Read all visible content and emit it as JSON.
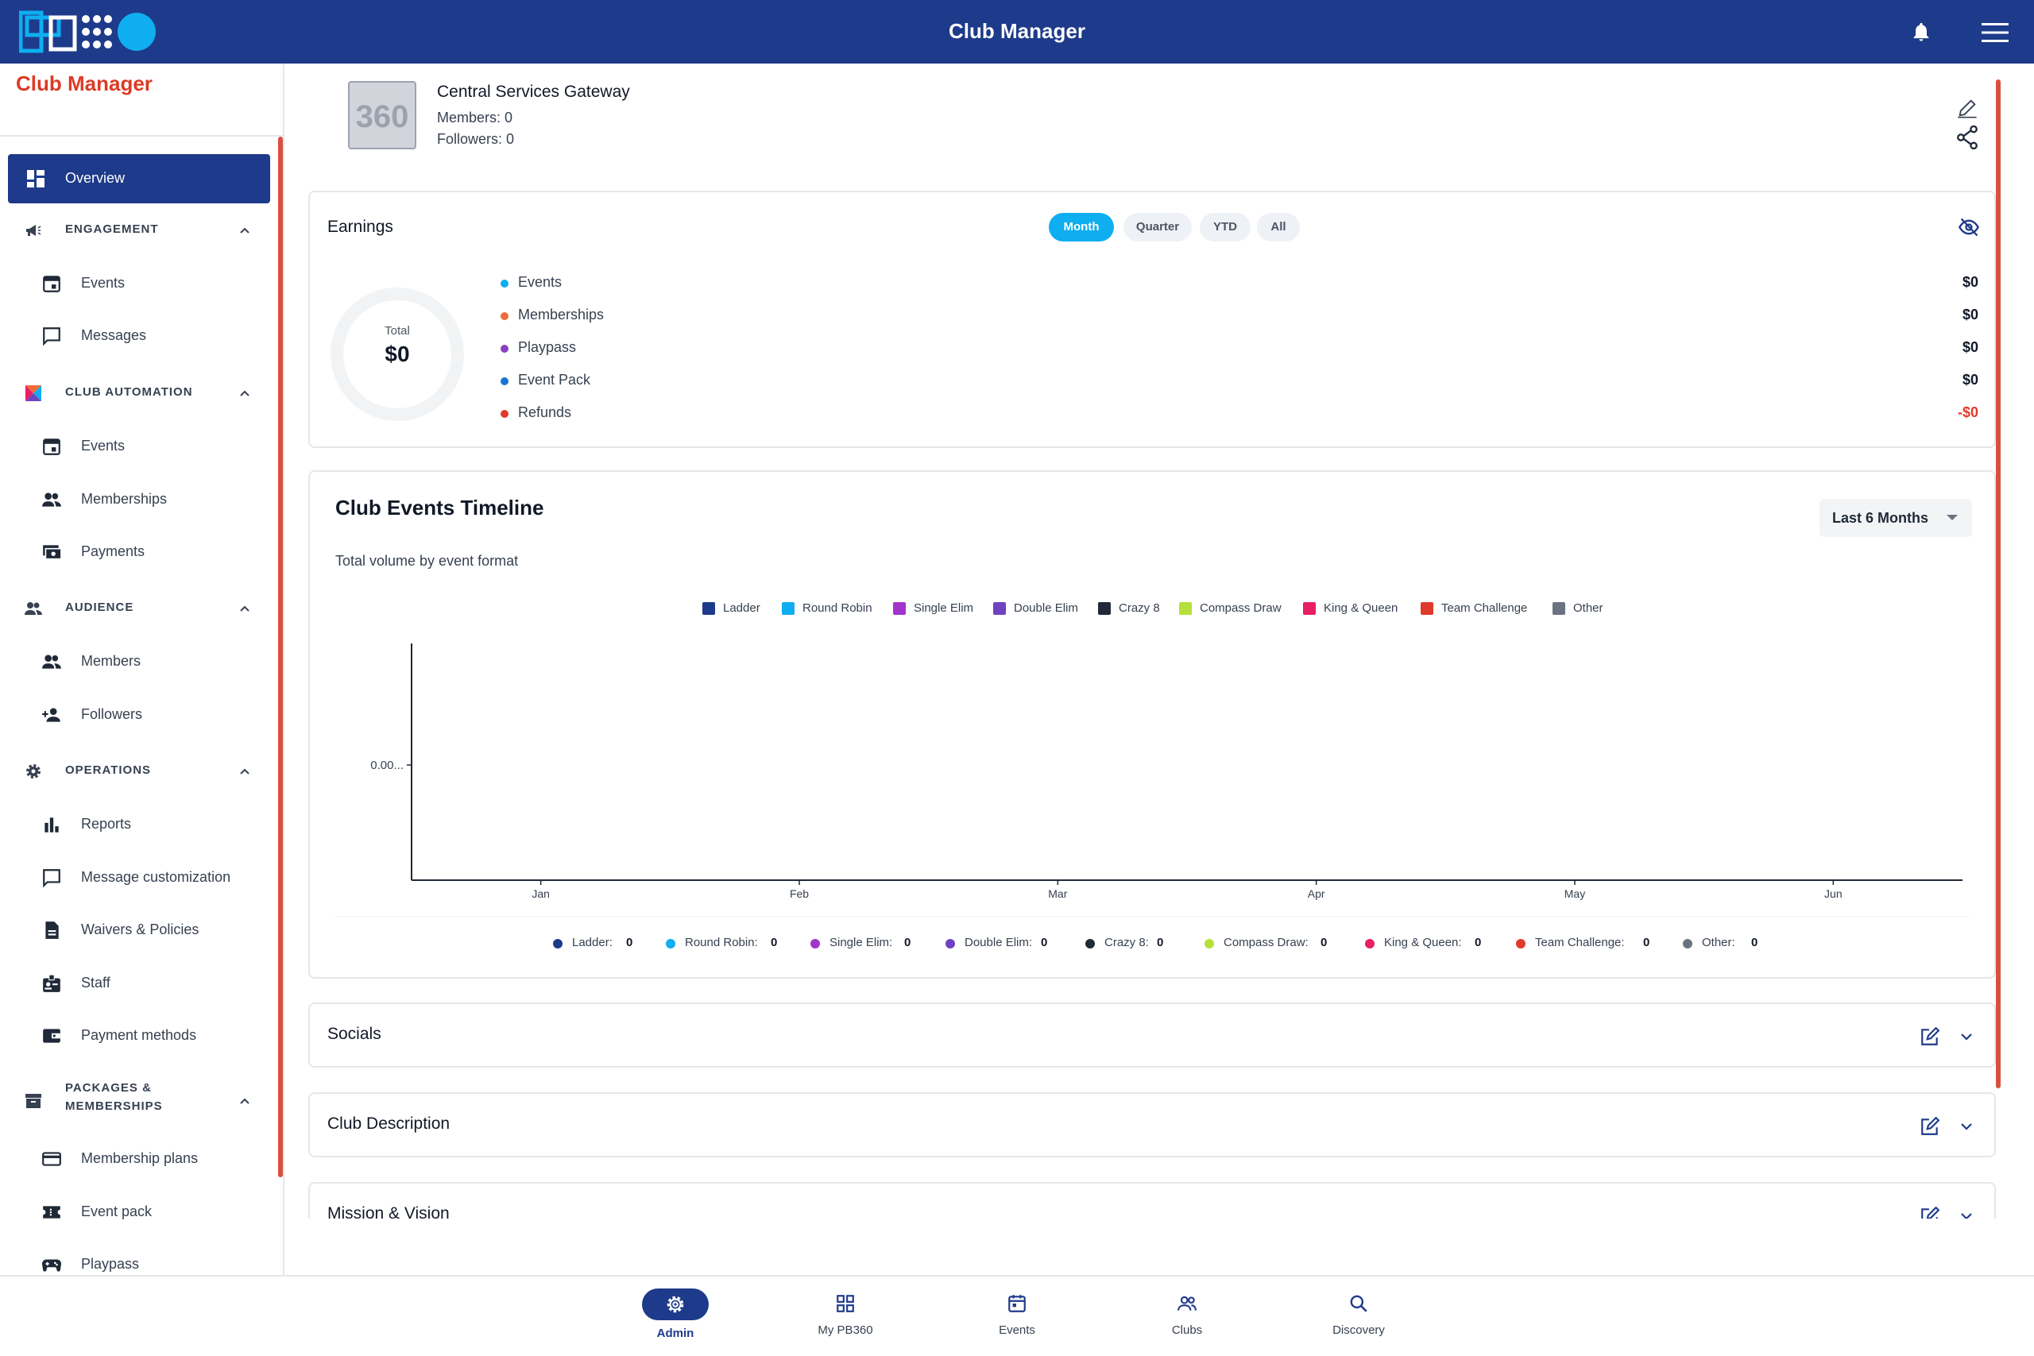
{
  "app": {
    "title": "Club Manager"
  },
  "sidebar": {
    "title": "Club Manager",
    "overview": "Overview",
    "sections": [
      {
        "label": "ENGAGEMENT",
        "items": [
          "Events",
          "Messages"
        ]
      },
      {
        "label": "CLUB AUTOMATION",
        "items": [
          "Events",
          "Memberships",
          "Payments"
        ]
      },
      {
        "label": "AUDIENCE",
        "items": [
          "Members",
          "Followers"
        ]
      },
      {
        "label": "OPERATIONS",
        "items": [
          "Reports",
          "Message customization",
          "Waivers & Policies",
          "Staff",
          "Payment methods"
        ]
      },
      {
        "label": "PACKAGES &",
        "label2": "MEMBERSHIPS",
        "items": [
          "Membership plans",
          "Event pack",
          "Playpass"
        ]
      }
    ]
  },
  "club": {
    "logo_text": "360",
    "name": "Central Services Gateway",
    "members": "Members:  0",
    "followers": "Followers:  0"
  },
  "earnings": {
    "title": "Earnings",
    "periods": [
      "Month",
      "Quarter",
      "YTD",
      "All"
    ],
    "selected_period": "Month",
    "total_label": "Total",
    "total_value": "$0",
    "rows": [
      {
        "label": "Events",
        "value": "$0",
        "color": "#0eaef0"
      },
      {
        "label": "Memberships",
        "value": "$0",
        "color": "#f26b3a"
      },
      {
        "label": "Playpass",
        "value": "$0",
        "color": "#8b3fbf"
      },
      {
        "label": "Event Pack",
        "value": "$0",
        "color": "#1976d2"
      },
      {
        "label": "Refunds",
        "value": "-$0",
        "color": "#e03a2b"
      }
    ]
  },
  "timeline": {
    "title": "Club Events Timeline",
    "subtitle": "Total volume by event format",
    "range": "Last 6 Months",
    "legend": [
      {
        "name": "Ladder",
        "color": "#1e3a8a"
      },
      {
        "name": "Round Robin",
        "color": "#0eaef0"
      },
      {
        "name": "Single Elim",
        "color": "#a334c9"
      },
      {
        "name": "Double Elim",
        "color": "#6f42c1"
      },
      {
        "name": "Crazy 8",
        "color": "#1f2937"
      },
      {
        "name": "Compass Draw",
        "color": "#b5e03b"
      },
      {
        "name": "King & Queen",
        "color": "#e91e63"
      },
      {
        "name": "Team Challenge",
        "color": "#e03a2b"
      },
      {
        "name": "Other",
        "color": "#6b7280"
      }
    ],
    "summary": [
      {
        "label": "Ladder:",
        "value": "0"
      },
      {
        "label": "Round Robin:",
        "value": "0"
      },
      {
        "label": "Single Elim:",
        "value": "0"
      },
      {
        "label": "Double Elim:",
        "value": "0"
      },
      {
        "label": "Crazy 8:",
        "value": "0"
      },
      {
        "label": "Compass Draw:",
        "value": "0"
      },
      {
        "label": "King & Queen:",
        "value": "0"
      },
      {
        "label": "Team Challenge:",
        "value": "0"
      },
      {
        "label": "Other:",
        "value": "0"
      }
    ]
  },
  "chart_data": {
    "type": "bar",
    "categories": [
      "Jan",
      "Feb",
      "Mar",
      "Apr",
      "May",
      "Jun"
    ],
    "y_tick_labels": [
      "0.00..."
    ],
    "series": [
      {
        "name": "Ladder",
        "values": [
          0,
          0,
          0,
          0,
          0,
          0
        ]
      },
      {
        "name": "Round Robin",
        "values": [
          0,
          0,
          0,
          0,
          0,
          0
        ]
      },
      {
        "name": "Single Elim",
        "values": [
          0,
          0,
          0,
          0,
          0,
          0
        ]
      },
      {
        "name": "Double Elim",
        "values": [
          0,
          0,
          0,
          0,
          0,
          0
        ]
      },
      {
        "name": "Crazy 8",
        "values": [
          0,
          0,
          0,
          0,
          0,
          0
        ]
      },
      {
        "name": "Compass Draw",
        "values": [
          0,
          0,
          0,
          0,
          0,
          0
        ]
      },
      {
        "name": "King & Queen",
        "values": [
          0,
          0,
          0,
          0,
          0,
          0
        ]
      },
      {
        "name": "Team Challenge",
        "values": [
          0,
          0,
          0,
          0,
          0,
          0
        ]
      },
      {
        "name": "Other",
        "values": [
          0,
          0,
          0,
          0,
          0,
          0
        ]
      }
    ],
    "title": "Club Events Timeline",
    "legend_position": "top",
    "grid": false
  },
  "accordions": [
    "Socials",
    "Club Description",
    "Mission & Vision"
  ],
  "bottom_nav": [
    {
      "label": "Admin",
      "icon": "gear-icon",
      "active": true
    },
    {
      "label": "My PB360",
      "icon": "grid-icon",
      "active": false
    },
    {
      "label": "Events",
      "icon": "calendar-icon",
      "active": false
    },
    {
      "label": "Clubs",
      "icon": "people-icon",
      "active": false
    },
    {
      "label": "Discovery",
      "icon": "search-icon",
      "active": false
    }
  ]
}
